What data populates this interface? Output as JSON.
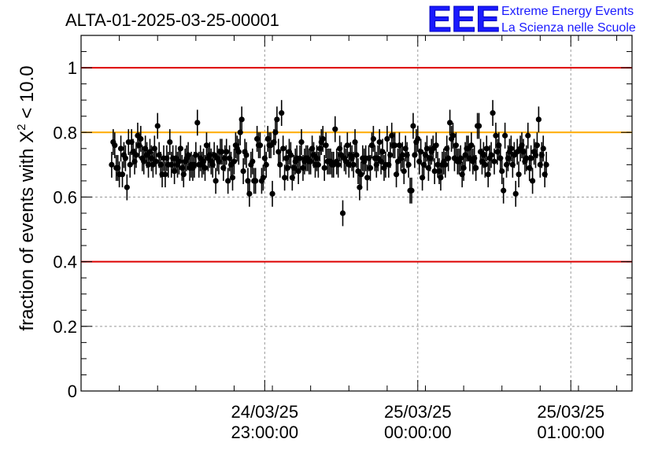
{
  "title": "ALTA-01-2025-03-25-00001",
  "logo": {
    "mark": "EEE",
    "line1": "Extreme Energy Events",
    "line2": "La Scienza nelle Scuole",
    "color": "#1a1aff"
  },
  "chart_data": {
    "type": "scatter",
    "title": "ALTA-01-2025-03-25-00001",
    "ylabel_prefix": "fraction of events with ",
    "ylabel_symbol": "Χ",
    "ylabel_sup": "2",
    "ylabel_suffix": " < 10.0",
    "ylim": [
      0,
      1.1
    ],
    "xlim_minutes": [
      -60,
      120
    ],
    "y_ticks": [
      {
        "value": 0,
        "label": "0"
      },
      {
        "value": 0.2,
        "label": "0.2"
      },
      {
        "value": 0.4,
        "label": "0.4"
      },
      {
        "value": 0.6,
        "label": "0.6"
      },
      {
        "value": 0.8,
        "label": "0.8"
      },
      {
        "value": 1,
        "label": "1"
      }
    ],
    "x_ticks": [
      {
        "minutes": 0,
        "date": "24/03/25",
        "time": "23:00:00"
      },
      {
        "minutes": 50,
        "date": "25/03/25",
        "time": "00:00:00"
      },
      {
        "minutes": 100,
        "date": "25/03/25",
        "time": "01:00:00"
      }
    ],
    "grid": true,
    "reference_lines": [
      {
        "y": 1.0,
        "color": "#dd0000"
      },
      {
        "y": 0.8,
        "color": "#ffaa00"
      },
      {
        "y": 0.4,
        "color": "#dd0000"
      }
    ],
    "series": [
      {
        "color": "#000000",
        "error": 0.04,
        "x_start": -50,
        "x_step": 0.5,
        "values": [
          0.7,
          0.77,
          0.76,
          0.69,
          0.69,
          0.67,
          0.75,
          0.67,
          0.73,
          0.72,
          0.63,
          0.77,
          0.7,
          0.77,
          0.74,
          0.71,
          0.73,
          0.79,
          0.76,
          0.78,
          0.72,
          0.71,
          0.75,
          0.73,
          0.7,
          0.74,
          0.72,
          0.7,
          0.75,
          0.71,
          0.82,
          0.73,
          0.7,
          0.67,
          0.72,
          0.67,
          0.72,
          0.7,
          0.77,
          0.7,
          0.72,
          0.68,
          0.72,
          0.7,
          0.71,
          0.75,
          0.69,
          0.67,
          0.71,
          0.72,
          0.73,
          0.69,
          0.7,
          0.69,
          0.7,
          0.73,
          0.83,
          0.7,
          0.72,
          0.7,
          0.71,
          0.69,
          0.76,
          0.72,
          0.73,
          0.71,
          0.7,
          0.73,
          0.65,
          0.72,
          0.71,
          0.74,
          0.74,
          0.69,
          0.72,
          0.74,
          0.65,
          0.72,
          0.7,
          0.66,
          0.71,
          0.76,
          0.75,
          0.74,
          0.8,
          0.84,
          0.68,
          0.74,
          0.73,
          0.65,
          0.61,
          0.7,
          0.71,
          0.65,
          0.65,
          0.78,
          0.76,
          0.76,
          0.65,
          0.66,
          0.72,
          0.7,
          0.78,
          0.76,
          0.76,
          0.61,
          0.77,
          0.8,
          0.84,
          0.74,
          0.7,
          0.86,
          0.75,
          0.66,
          0.72,
          0.69,
          0.74,
          0.73,
          0.66,
          0.69,
          0.71,
          0.72,
          0.68,
          0.72,
          0.77,
          0.69,
          0.71,
          0.72,
          0.72,
          0.71,
          0.71,
          0.75,
          0.73,
          0.7,
          0.72,
          0.7,
          0.75,
          0.77,
          0.78,
          0.69,
          0.76,
          0.71,
          0.71,
          0.71,
          0.7,
          0.7,
          0.81,
          0.71,
          0.7,
          0.75,
          0.73,
          0.55,
          0.72,
          0.71,
          0.76,
          0.7,
          0.73,
          0.72,
          0.7,
          0.77,
          0.73,
          0.68,
          0.63,
          0.67,
          0.72,
          0.71,
          0.72,
          0.66,
          0.72,
          0.69,
          0.76,
          0.78,
          0.72,
          0.7,
          0.72,
          0.77,
          0.71,
          0.74,
          0.69,
          0.7,
          0.78,
          0.7,
          0.73,
          0.79,
          0.76,
          0.76,
          0.67,
          0.71,
          0.76,
          0.72,
          0.73,
          0.68,
          0.75,
          0.73,
          0.7,
          0.62,
          0.62,
          0.82,
          0.73,
          0.77,
          0.78,
          0.71,
          0.74,
          0.66,
          0.7,
          0.73,
          0.75,
          0.69,
          0.72,
          0.74,
          0.75,
          0.68,
          0.76,
          0.7,
          0.68,
          0.66,
          0.7,
          0.71,
          0.7,
          0.75,
          0.72,
          0.83,
          0.78,
          0.79,
          0.72,
          0.76,
          0.71,
          0.71,
          0.72,
          0.67,
          0.69,
          0.73,
          0.75,
          0.75,
          0.72,
          0.76,
          0.71,
          0.72,
          0.69,
          0.82,
          0.82,
          0.74,
          0.71,
          0.73,
          0.7,
          0.75,
          0.67,
          0.72,
          0.73,
          0.86,
          0.71,
          0.79,
          0.74,
          0.76,
          0.72,
          0.68,
          0.62,
          0.79,
          0.7,
          0.72,
          0.74,
          0.75,
          0.7,
          0.73,
          0.61,
          0.74,
          0.67,
          0.75,
          0.76,
          0.74,
          0.71,
          0.72,
          0.79,
          0.69,
          0.72,
          0.65,
          0.74,
          0.73,
          0.76,
          0.84,
          0.7,
          0.73,
          0.75,
          0.67,
          0.7
        ]
      }
    ]
  }
}
